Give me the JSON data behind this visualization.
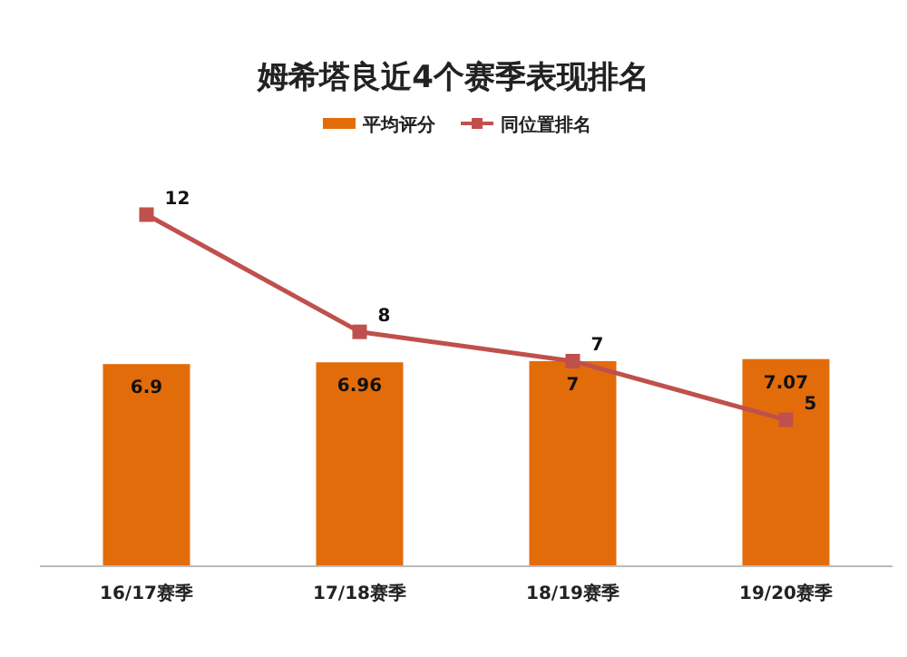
{
  "chart_data": {
    "type": "bar",
    "title": "姆希塔良近4个赛季表现排名",
    "categories": [
      "16/17赛季",
      "17/18赛季",
      "18/19赛季",
      "19/20赛季"
    ],
    "series": [
      {
        "name": "平均评分",
        "color": "#e36c0a",
        "values": [
          6.9,
          6.96,
          7,
          7.07
        ]
      },
      {
        "name": "同位置排名",
        "type": "line",
        "color": "#c0504d",
        "values": [
          12,
          8,
          7,
          5
        ]
      }
    ],
    "data_labels": true,
    "legend": "top",
    "marker": "square",
    "grid": false
  }
}
